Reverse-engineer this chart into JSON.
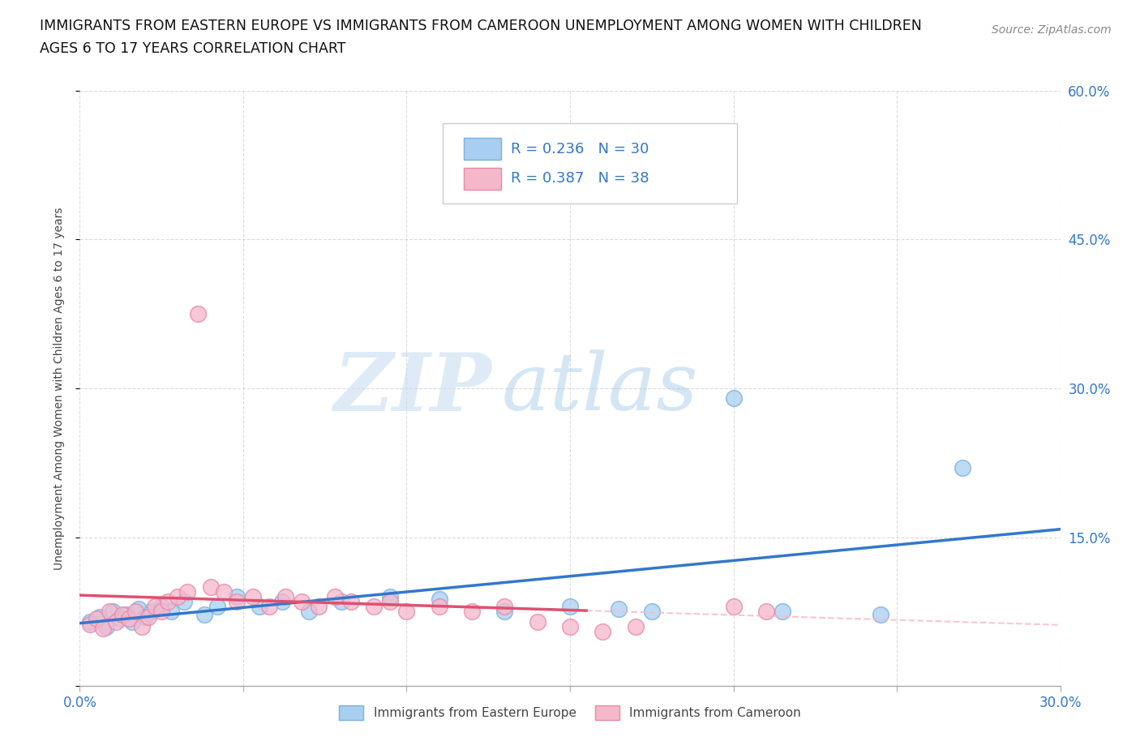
{
  "title_line1": "IMMIGRANTS FROM EASTERN EUROPE VS IMMIGRANTS FROM CAMEROON UNEMPLOYMENT AMONG WOMEN WITH CHILDREN",
  "title_line2": "AGES 6 TO 17 YEARS CORRELATION CHART",
  "source": "Source: ZipAtlas.com",
  "ylabel": "Unemployment Among Women with Children Ages 6 to 17 years",
  "xlim": [
    0.0,
    0.3
  ],
  "ylim": [
    0.0,
    0.6
  ],
  "xtick_pos": [
    0.0,
    0.05,
    0.1,
    0.15,
    0.2,
    0.25,
    0.3
  ],
  "xtick_labels": [
    "0.0%",
    "",
    "",
    "",
    "",
    "",
    "30.0%"
  ],
  "ytick_pos": [
    0.0,
    0.15,
    0.3,
    0.45,
    0.6
  ],
  "ytick_labels": [
    "",
    "15.0%",
    "30.0%",
    "45.0%",
    "60.0%"
  ],
  "blue_color": "#a8cff0",
  "blue_edge_color": "#7ab0e0",
  "pink_color": "#f5b8cb",
  "pink_edge_color": "#e888a8",
  "blue_line_color": "#3377cc",
  "pink_line_color": "#e05070",
  "pink_dash_color": "#f5b8cb",
  "grid_color": "#cccccc",
  "watermark_zip": "ZIP",
  "watermark_atlas": "atlas",
  "legend_label1": "Immigrants from Eastern Europe",
  "legend_label2": "Immigrants from Cameroon",
  "blue_x": [
    0.003,
    0.006,
    0.008,
    0.01,
    0.012,
    0.014,
    0.016,
    0.018,
    0.02,
    0.022,
    0.025,
    0.028,
    0.032,
    0.038,
    0.042,
    0.048,
    0.055,
    0.062,
    0.07,
    0.08,
    0.095,
    0.11,
    0.13,
    0.15,
    0.165,
    0.175,
    0.2,
    0.215,
    0.245,
    0.27
  ],
  "blue_y": [
    0.065,
    0.07,
    0.06,
    0.075,
    0.068,
    0.072,
    0.065,
    0.078,
    0.07,
    0.075,
    0.08,
    0.075,
    0.085,
    0.072,
    0.08,
    0.09,
    0.08,
    0.085,
    0.075,
    0.085,
    0.09,
    0.088,
    0.075,
    0.08,
    0.078,
    0.075,
    0.29,
    0.075,
    0.072,
    0.22
  ],
  "pink_x": [
    0.003,
    0.005,
    0.007,
    0.009,
    0.011,
    0.013,
    0.015,
    0.017,
    0.019,
    0.021,
    0.023,
    0.025,
    0.027,
    0.03,
    0.033,
    0.036,
    0.04,
    0.044,
    0.048,
    0.053,
    0.058,
    0.063,
    0.068,
    0.073,
    0.078,
    0.083,
    0.09,
    0.095,
    0.1,
    0.11,
    0.12,
    0.13,
    0.14,
    0.15,
    0.16,
    0.17,
    0.2,
    0.21
  ],
  "pink_y": [
    0.062,
    0.068,
    0.058,
    0.075,
    0.065,
    0.072,
    0.068,
    0.075,
    0.06,
    0.07,
    0.08,
    0.075,
    0.085,
    0.09,
    0.095,
    0.375,
    0.1,
    0.095,
    0.085,
    0.09,
    0.08,
    0.09,
    0.085,
    0.08,
    0.09,
    0.085,
    0.08,
    0.085,
    0.075,
    0.08,
    0.075,
    0.08,
    0.065,
    0.06,
    0.055,
    0.06,
    0.08,
    0.075
  ]
}
